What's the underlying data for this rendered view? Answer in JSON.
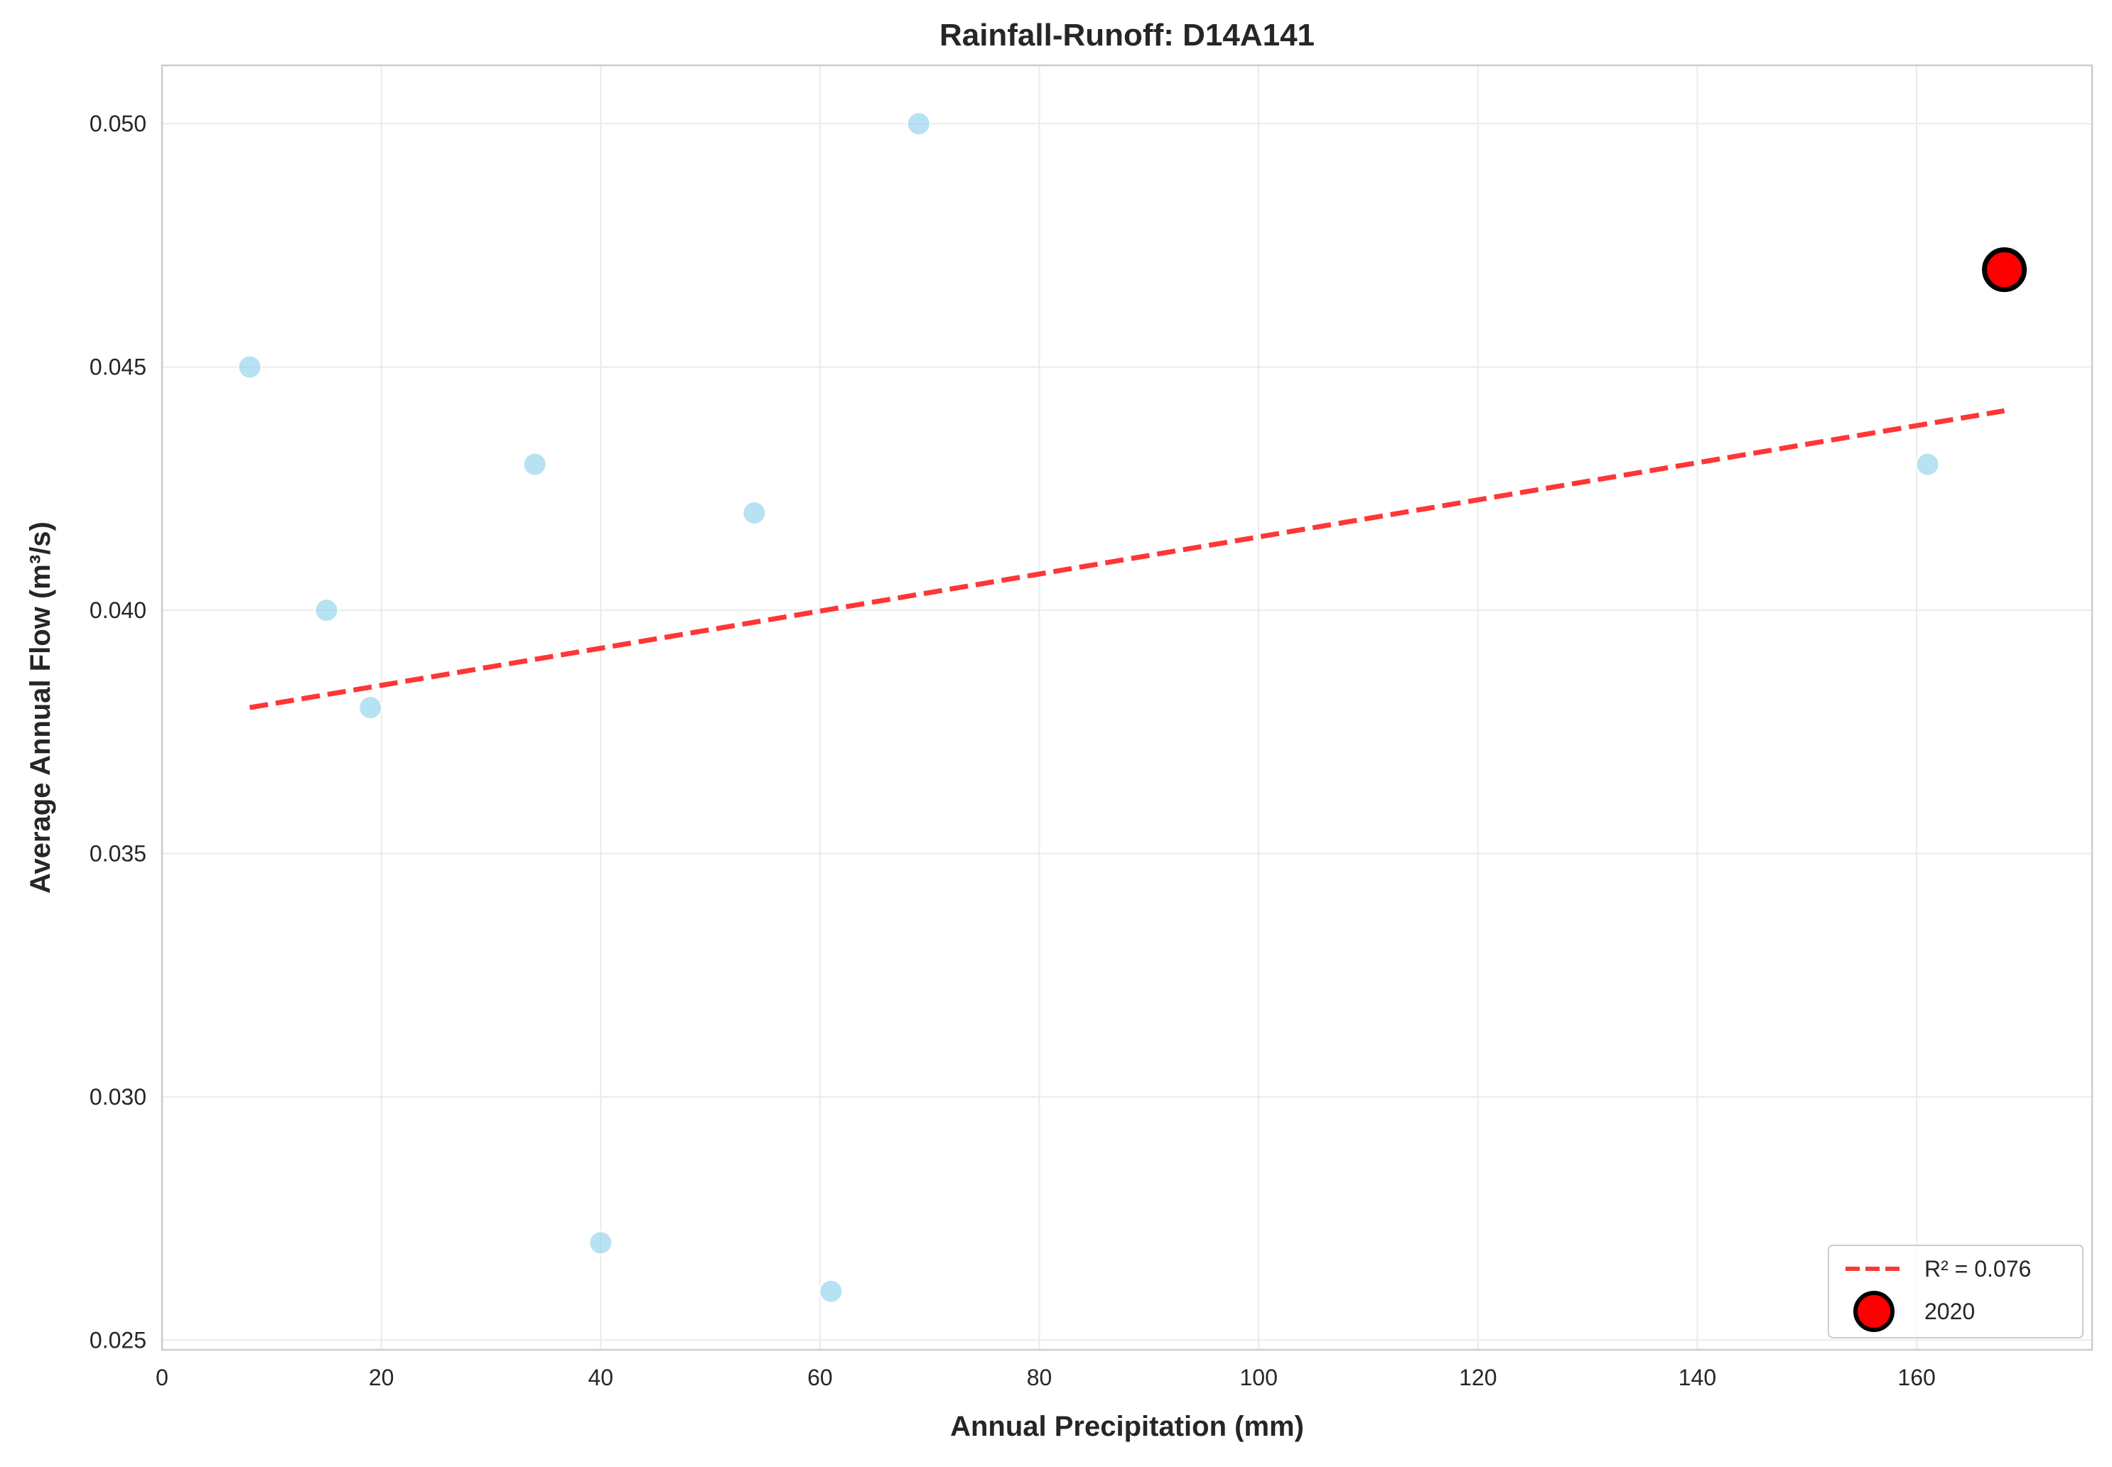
{
  "chart_data": {
    "type": "scatter",
    "title": "Rainfall-Runoff: D14A141",
    "xlabel": "Annual Precipitation (mm)",
    "ylabel": "Average Annual Flow (m³/s)",
    "xlim": [
      0,
      176
    ],
    "ylim": [
      0.0248,
      0.0512
    ],
    "x_ticks": [
      0,
      20,
      40,
      60,
      80,
      100,
      120,
      140,
      160
    ],
    "y_ticks": [
      0.025,
      0.03,
      0.035,
      0.04,
      0.045,
      0.05
    ],
    "y_tick_labels": [
      "0.025",
      "0.030",
      "0.035",
      "0.040",
      "0.045",
      "0.050"
    ],
    "grid": true,
    "legend_position": "lower-right",
    "series": [
      {
        "kind": "scatter",
        "color": "#87ceeb",
        "points": [
          {
            "x": 8,
            "y": 0.045
          },
          {
            "x": 15,
            "y": 0.04
          },
          {
            "x": 19,
            "y": 0.038
          },
          {
            "x": 34,
            "y": 0.043
          },
          {
            "x": 40,
            "y": 0.027
          },
          {
            "x": 54,
            "y": 0.042
          },
          {
            "x": 61,
            "y": 0.026
          },
          {
            "x": 69,
            "y": 0.05
          },
          {
            "x": 161,
            "y": 0.043
          }
        ]
      },
      {
        "kind": "trend-line",
        "name": "R² = 0.076",
        "color": "#ff2b2b",
        "style": "dashed",
        "points": [
          {
            "x": 8,
            "y": 0.038
          },
          {
            "x": 168,
            "y": 0.0441
          }
        ]
      },
      {
        "kind": "highlight",
        "name": "2020",
        "color": "#ff0000",
        "edge_color": "#000000",
        "points": [
          {
            "x": 168,
            "y": 0.047
          }
        ]
      }
    ]
  }
}
